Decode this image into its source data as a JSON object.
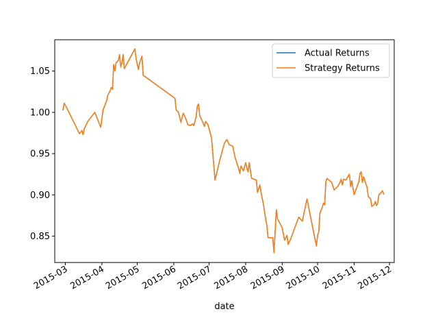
{
  "chart_data": {
    "type": "line",
    "title": "",
    "xlabel": "date",
    "ylabel": "",
    "ylim": [
      0.818,
      1.088
    ],
    "xlim": [
      "2015-02-20",
      "2015-12-05"
    ],
    "grid": false,
    "legend_position": "top-right",
    "x_ticks": [
      "2015-03",
      "2015-04",
      "2015-05",
      "2015-06",
      "2015-07",
      "2015-08",
      "2015-09",
      "2015-10",
      "2015-11",
      "2015-12"
    ],
    "y_ticks": [
      "0.85",
      "0.90",
      "0.95",
      "1.00",
      "1.05"
    ],
    "series": [
      {
        "name": "Actual Returns",
        "color": "#1f77b4",
        "points": [
          [
            "2015-02-27",
            1.003
          ],
          [
            "2015-02-28",
            1.011
          ],
          [
            "2015-03-02",
            1.006
          ],
          [
            "2015-03-13",
            0.974
          ],
          [
            "2015-03-15",
            0.978
          ],
          [
            "2015-03-16",
            0.973
          ],
          [
            "2015-03-17",
            0.98
          ],
          [
            "2015-03-20",
            0.989
          ],
          [
            "2015-03-26",
            1.0
          ],
          [
            "2015-03-31",
            0.982
          ],
          [
            "2015-04-02",
            1.003
          ],
          [
            "2015-04-05",
            1.014
          ],
          [
            "2015-04-06",
            1.021
          ],
          [
            "2015-04-08",
            1.026
          ],
          [
            "2015-04-09",
            1.03
          ],
          [
            "2015-04-10",
            1.028
          ],
          [
            "2015-04-11",
            1.058
          ],
          [
            "2015-04-12",
            1.05
          ],
          [
            "2015-04-13",
            1.06
          ],
          [
            "2015-04-15",
            1.063
          ],
          [
            "2015-04-16",
            1.07
          ],
          [
            "2015-04-17",
            1.055
          ],
          [
            "2015-04-18",
            1.06
          ],
          [
            "2015-04-19",
            1.07
          ],
          [
            "2015-04-20",
            1.053
          ],
          [
            "2015-04-29",
            1.077
          ],
          [
            "2015-04-30",
            1.065
          ],
          [
            "2015-05-02",
            1.052
          ],
          [
            "2015-05-03",
            1.06
          ],
          [
            "2015-05-05",
            1.068
          ],
          [
            "2015-05-06",
            1.045
          ],
          [
            "2015-06-02",
            1.017
          ],
          [
            "2015-06-03",
            1.003
          ],
          [
            "2015-06-05",
            1.0
          ],
          [
            "2015-06-07",
            0.988
          ],
          [
            "2015-06-09",
            0.999
          ],
          [
            "2015-06-11",
            0.993
          ],
          [
            "2015-06-13",
            0.985
          ],
          [
            "2015-06-15",
            0.984
          ],
          [
            "2015-06-17",
            0.986
          ],
          [
            "2015-06-18",
            0.984
          ],
          [
            "2015-06-20",
            0.995
          ],
          [
            "2015-06-21",
            1.008
          ],
          [
            "2015-06-22",
            1.01
          ],
          [
            "2015-06-23",
            0.996
          ],
          [
            "2015-06-25",
            0.99
          ],
          [
            "2015-06-27",
            0.983
          ],
          [
            "2015-06-28",
            0.989
          ],
          [
            "2015-06-30",
            0.985
          ],
          [
            "2015-07-03",
            0.969
          ],
          [
            "2015-07-04",
            0.952
          ],
          [
            "2015-07-06",
            0.918
          ],
          [
            "2015-07-10",
            0.942
          ],
          [
            "2015-07-14",
            0.963
          ],
          [
            "2015-07-16",
            0.967
          ],
          [
            "2015-07-18",
            0.961
          ],
          [
            "2015-07-21",
            0.959
          ],
          [
            "2015-07-23",
            0.945
          ],
          [
            "2015-07-26",
            0.932
          ],
          [
            "2015-07-27",
            0.926
          ],
          [
            "2015-07-28",
            0.935
          ],
          [
            "2015-07-30",
            0.929
          ],
          [
            "2015-08-01",
            0.939
          ],
          [
            "2015-08-02",
            0.932
          ],
          [
            "2015-08-03",
            0.928
          ],
          [
            "2015-08-04",
            0.939
          ],
          [
            "2015-08-06",
            0.92
          ],
          [
            "2015-08-10",
            0.918
          ],
          [
            "2015-08-11",
            0.903
          ],
          [
            "2015-08-13",
            0.912
          ],
          [
            "2015-08-14",
            0.903
          ],
          [
            "2015-08-16",
            0.889
          ],
          [
            "2015-08-18",
            0.87
          ],
          [
            "2015-08-19",
            0.863
          ],
          [
            "2015-08-20",
            0.848
          ],
          [
            "2015-08-24",
            0.848
          ],
          [
            "2015-08-25",
            0.83
          ],
          [
            "2015-08-27",
            0.882
          ],
          [
            "2015-08-28",
            0.871
          ],
          [
            "2015-09-01",
            0.86
          ],
          [
            "2015-09-03",
            0.845
          ],
          [
            "2015-09-05",
            0.851
          ],
          [
            "2015-09-06",
            0.84
          ],
          [
            "2015-09-08",
            0.846
          ],
          [
            "2015-09-15",
            0.873
          ],
          [
            "2015-09-18",
            0.868
          ],
          [
            "2015-09-22",
            0.895
          ],
          [
            "2015-09-30",
            0.838
          ],
          [
            "2015-10-01",
            0.851
          ],
          [
            "2015-10-02",
            0.855
          ],
          [
            "2015-10-03",
            0.878
          ],
          [
            "2015-10-05",
            0.885
          ],
          [
            "2015-10-06",
            0.89
          ],
          [
            "2015-10-07",
            0.888
          ],
          [
            "2015-10-08",
            0.916
          ],
          [
            "2015-10-09",
            0.92
          ],
          [
            "2015-10-13",
            0.915
          ],
          [
            "2015-10-15",
            0.906
          ],
          [
            "2015-10-18",
            0.91
          ],
          [
            "2015-10-20",
            0.915
          ],
          [
            "2015-10-21",
            0.919
          ],
          [
            "2015-10-22",
            0.912
          ],
          [
            "2015-10-23",
            0.919
          ],
          [
            "2015-10-25",
            0.918
          ],
          [
            "2015-10-28",
            0.925
          ],
          [
            "2015-10-29",
            0.91
          ],
          [
            "2015-10-30",
            0.917
          ],
          [
            "2015-11-01",
            0.9
          ],
          [
            "2015-11-05",
            0.916
          ],
          [
            "2015-11-06",
            0.926
          ],
          [
            "2015-11-07",
            0.928
          ],
          [
            "2015-11-08",
            0.915
          ],
          [
            "2015-11-09",
            0.922
          ],
          [
            "2015-11-12",
            0.909
          ],
          [
            "2015-11-13",
            0.898
          ],
          [
            "2015-11-15",
            0.895
          ],
          [
            "2015-11-16",
            0.886
          ],
          [
            "2015-11-18",
            0.888
          ],
          [
            "2015-11-19",
            0.892
          ],
          [
            "2015-11-20",
            0.887
          ],
          [
            "2015-11-21",
            0.89
          ],
          [
            "2015-11-22",
            0.9
          ],
          [
            "2015-11-24",
            0.903
          ],
          [
            "2015-11-25",
            0.905
          ],
          [
            "2015-11-26",
            0.901
          ]
        ]
      },
      {
        "name": "Strategy Returns",
        "color": "#ff7f0e",
        "points": [
          [
            "2015-02-27",
            1.003
          ],
          [
            "2015-02-28",
            1.011
          ],
          [
            "2015-03-02",
            1.006
          ],
          [
            "2015-03-13",
            0.974
          ],
          [
            "2015-03-15",
            0.978
          ],
          [
            "2015-03-16",
            0.973
          ],
          [
            "2015-03-17",
            0.98
          ],
          [
            "2015-03-20",
            0.989
          ],
          [
            "2015-03-26",
            1.0
          ],
          [
            "2015-03-31",
            0.982
          ],
          [
            "2015-04-02",
            1.003
          ],
          [
            "2015-04-05",
            1.014
          ],
          [
            "2015-04-06",
            1.021
          ],
          [
            "2015-04-08",
            1.026
          ],
          [
            "2015-04-09",
            1.03
          ],
          [
            "2015-04-10",
            1.028
          ],
          [
            "2015-04-11",
            1.058
          ],
          [
            "2015-04-12",
            1.05
          ],
          [
            "2015-04-13",
            1.06
          ],
          [
            "2015-04-15",
            1.063
          ],
          [
            "2015-04-16",
            1.07
          ],
          [
            "2015-04-17",
            1.055
          ],
          [
            "2015-04-18",
            1.06
          ],
          [
            "2015-04-19",
            1.07
          ],
          [
            "2015-04-20",
            1.053
          ],
          [
            "2015-04-29",
            1.077
          ],
          [
            "2015-04-30",
            1.065
          ],
          [
            "2015-05-02",
            1.052
          ],
          [
            "2015-05-03",
            1.06
          ],
          [
            "2015-05-05",
            1.068
          ],
          [
            "2015-05-06",
            1.045
          ],
          [
            "2015-06-02",
            1.017
          ],
          [
            "2015-06-03",
            1.003
          ],
          [
            "2015-06-05",
            1.0
          ],
          [
            "2015-06-07",
            0.988
          ],
          [
            "2015-06-09",
            0.999
          ],
          [
            "2015-06-11",
            0.993
          ],
          [
            "2015-06-13",
            0.985
          ],
          [
            "2015-06-15",
            0.984
          ],
          [
            "2015-06-17",
            0.986
          ],
          [
            "2015-06-18",
            0.984
          ],
          [
            "2015-06-20",
            0.995
          ],
          [
            "2015-06-21",
            1.008
          ],
          [
            "2015-06-22",
            1.01
          ],
          [
            "2015-06-23",
            0.996
          ],
          [
            "2015-06-25",
            0.99
          ],
          [
            "2015-06-27",
            0.983
          ],
          [
            "2015-06-28",
            0.989
          ],
          [
            "2015-06-30",
            0.985
          ],
          [
            "2015-07-03",
            0.969
          ],
          [
            "2015-07-04",
            0.952
          ],
          [
            "2015-07-06",
            0.918
          ],
          [
            "2015-07-10",
            0.942
          ],
          [
            "2015-07-14",
            0.963
          ],
          [
            "2015-07-16",
            0.967
          ],
          [
            "2015-07-18",
            0.961
          ],
          [
            "2015-07-21",
            0.959
          ],
          [
            "2015-07-23",
            0.945
          ],
          [
            "2015-07-26",
            0.932
          ],
          [
            "2015-07-27",
            0.926
          ],
          [
            "2015-07-28",
            0.935
          ],
          [
            "2015-07-30",
            0.929
          ],
          [
            "2015-08-01",
            0.939
          ],
          [
            "2015-08-02",
            0.932
          ],
          [
            "2015-08-03",
            0.928
          ],
          [
            "2015-08-04",
            0.939
          ],
          [
            "2015-08-06",
            0.92
          ],
          [
            "2015-08-10",
            0.918
          ],
          [
            "2015-08-11",
            0.903
          ],
          [
            "2015-08-13",
            0.912
          ],
          [
            "2015-08-14",
            0.903
          ],
          [
            "2015-08-16",
            0.889
          ],
          [
            "2015-08-18",
            0.87
          ],
          [
            "2015-08-19",
            0.863
          ],
          [
            "2015-08-20",
            0.848
          ],
          [
            "2015-08-24",
            0.848
          ],
          [
            "2015-08-25",
            0.83
          ],
          [
            "2015-08-27",
            0.882
          ],
          [
            "2015-08-28",
            0.871
          ],
          [
            "2015-09-01",
            0.86
          ],
          [
            "2015-09-03",
            0.845
          ],
          [
            "2015-09-05",
            0.851
          ],
          [
            "2015-09-06",
            0.84
          ],
          [
            "2015-09-08",
            0.846
          ],
          [
            "2015-09-15",
            0.873
          ],
          [
            "2015-09-18",
            0.868
          ],
          [
            "2015-09-22",
            0.895
          ],
          [
            "2015-09-30",
            0.838
          ],
          [
            "2015-10-01",
            0.851
          ],
          [
            "2015-10-02",
            0.855
          ],
          [
            "2015-10-03",
            0.878
          ],
          [
            "2015-10-05",
            0.885
          ],
          [
            "2015-10-06",
            0.89
          ],
          [
            "2015-10-07",
            0.888
          ],
          [
            "2015-10-08",
            0.916
          ],
          [
            "2015-10-09",
            0.92
          ],
          [
            "2015-10-13",
            0.915
          ],
          [
            "2015-10-15",
            0.906
          ],
          [
            "2015-10-18",
            0.91
          ],
          [
            "2015-10-20",
            0.915
          ],
          [
            "2015-10-21",
            0.919
          ],
          [
            "2015-10-22",
            0.912
          ],
          [
            "2015-10-23",
            0.919
          ],
          [
            "2015-10-25",
            0.918
          ],
          [
            "2015-10-28",
            0.925
          ],
          [
            "2015-10-29",
            0.91
          ],
          [
            "2015-10-30",
            0.917
          ],
          [
            "2015-11-01",
            0.9
          ],
          [
            "2015-11-05",
            0.916
          ],
          [
            "2015-11-06",
            0.926
          ],
          [
            "2015-11-07",
            0.928
          ],
          [
            "2015-11-08",
            0.915
          ],
          [
            "2015-11-09",
            0.922
          ],
          [
            "2015-11-12",
            0.909
          ],
          [
            "2015-11-13",
            0.898
          ],
          [
            "2015-11-15",
            0.895
          ],
          [
            "2015-11-16",
            0.886
          ],
          [
            "2015-11-18",
            0.888
          ],
          [
            "2015-11-19",
            0.892
          ],
          [
            "2015-11-20",
            0.887
          ],
          [
            "2015-11-21",
            0.89
          ],
          [
            "2015-11-22",
            0.9
          ],
          [
            "2015-11-24",
            0.903
          ],
          [
            "2015-11-25",
            0.905
          ],
          [
            "2015-11-26",
            0.901
          ]
        ]
      }
    ]
  }
}
